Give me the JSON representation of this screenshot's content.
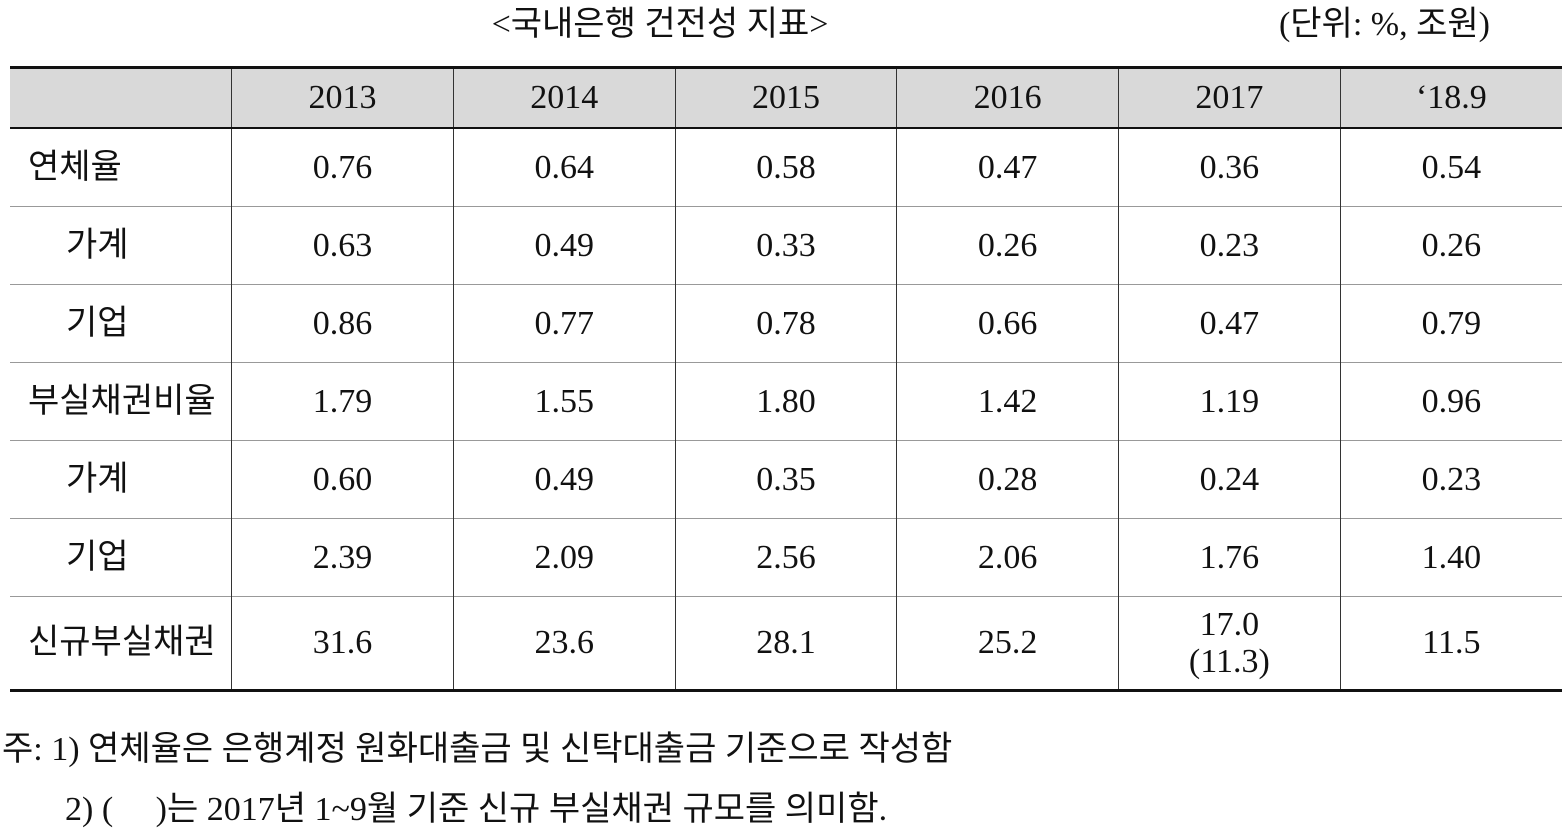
{
  "header": {
    "title": "<국내은행 건전성 지표>",
    "unit": "(단위: %, 조원)"
  },
  "table": {
    "columns": [
      "2013",
      "2014",
      "2015",
      "2016",
      "2017",
      "‘18.9"
    ],
    "rows": [
      {
        "label": "연체율",
        "cells": [
          "0.76",
          "0.64",
          "0.58",
          "0.47",
          "0.36",
          "0.54"
        ]
      },
      {
        "label": "가계",
        "cells": [
          "0.63",
          "0.49",
          "0.33",
          "0.26",
          "0.23",
          "0.26"
        ]
      },
      {
        "label": "기업",
        "cells": [
          "0.86",
          "0.77",
          "0.78",
          "0.66",
          "0.47",
          "0.79"
        ]
      },
      {
        "label": "부실채권비율",
        "cells": [
          "1.79",
          "1.55",
          "1.80",
          "1.42",
          "1.19",
          "0.96"
        ]
      },
      {
        "label": "가계",
        "cells": [
          "0.60",
          "0.49",
          "0.35",
          "0.28",
          "0.24",
          "0.23"
        ]
      },
      {
        "label": "기업",
        "cells": [
          "2.39",
          "2.09",
          "2.56",
          "2.06",
          "1.76",
          "1.40"
        ]
      },
      {
        "label": "신규부실채권",
        "cells": [
          "31.6",
          "23.6",
          "28.1",
          "25.2",
          [
            "17.0",
            "(11.3)"
          ],
          "11.5"
        ]
      }
    ]
  },
  "notes": [
    "주: 1) 연체율은 은행계정 원화대출금 및 신탁대출금 기준으로 작성함",
    "2) (     )는 2017년 1~9월 기준 신규 부실채권 규모를 의미함."
  ]
}
